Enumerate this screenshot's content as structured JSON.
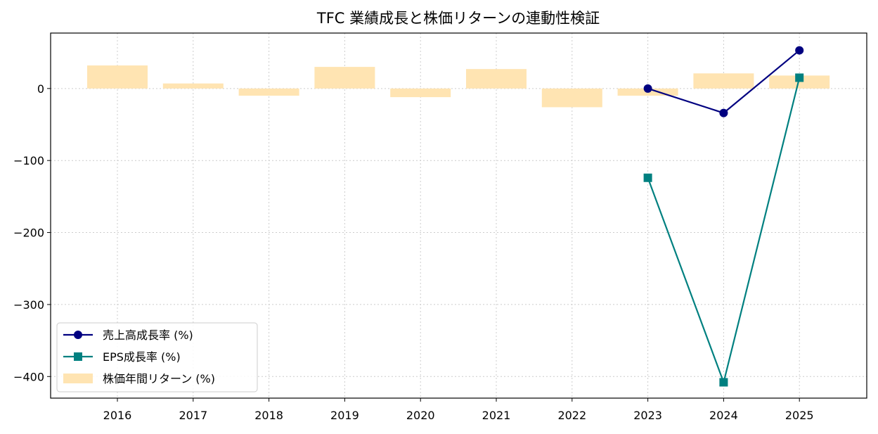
{
  "chart_data": {
    "type": "bar+line",
    "title": "TFC 業績成長と株価リターンの連動性検証",
    "xlabel": "",
    "ylabel": "",
    "categories": [
      "2016",
      "2017",
      "2018",
      "2019",
      "2020",
      "2021",
      "2022",
      "2023",
      "2024",
      "2025"
    ],
    "ylim": [
      -430,
      77
    ],
    "yticks": [
      0,
      -100,
      -200,
      -300,
      -400
    ],
    "ytick_labels": [
      "0",
      "−100",
      "−200",
      "−300",
      "−400"
    ],
    "grid": true,
    "legend_position": "lower-left",
    "bars": {
      "name": "株価年間リターン (%)",
      "color": "#ffe4b2",
      "values": [
        32,
        7,
        -10,
        30,
        -12,
        27,
        -26,
        -10,
        21,
        18
      ]
    },
    "series": [
      {
        "name": "売上高成長率 (%)",
        "color": "#000080",
        "marker": "circle",
        "x": [
          "2023",
          "2024",
          "2025"
        ],
        "values": [
          0,
          -34,
          53
        ]
      },
      {
        "name": "EPS成長率 (%)",
        "color": "#008080",
        "marker": "square",
        "x": [
          "2023",
          "2024",
          "2025"
        ],
        "values": [
          -124,
          -408,
          15
        ]
      }
    ]
  }
}
